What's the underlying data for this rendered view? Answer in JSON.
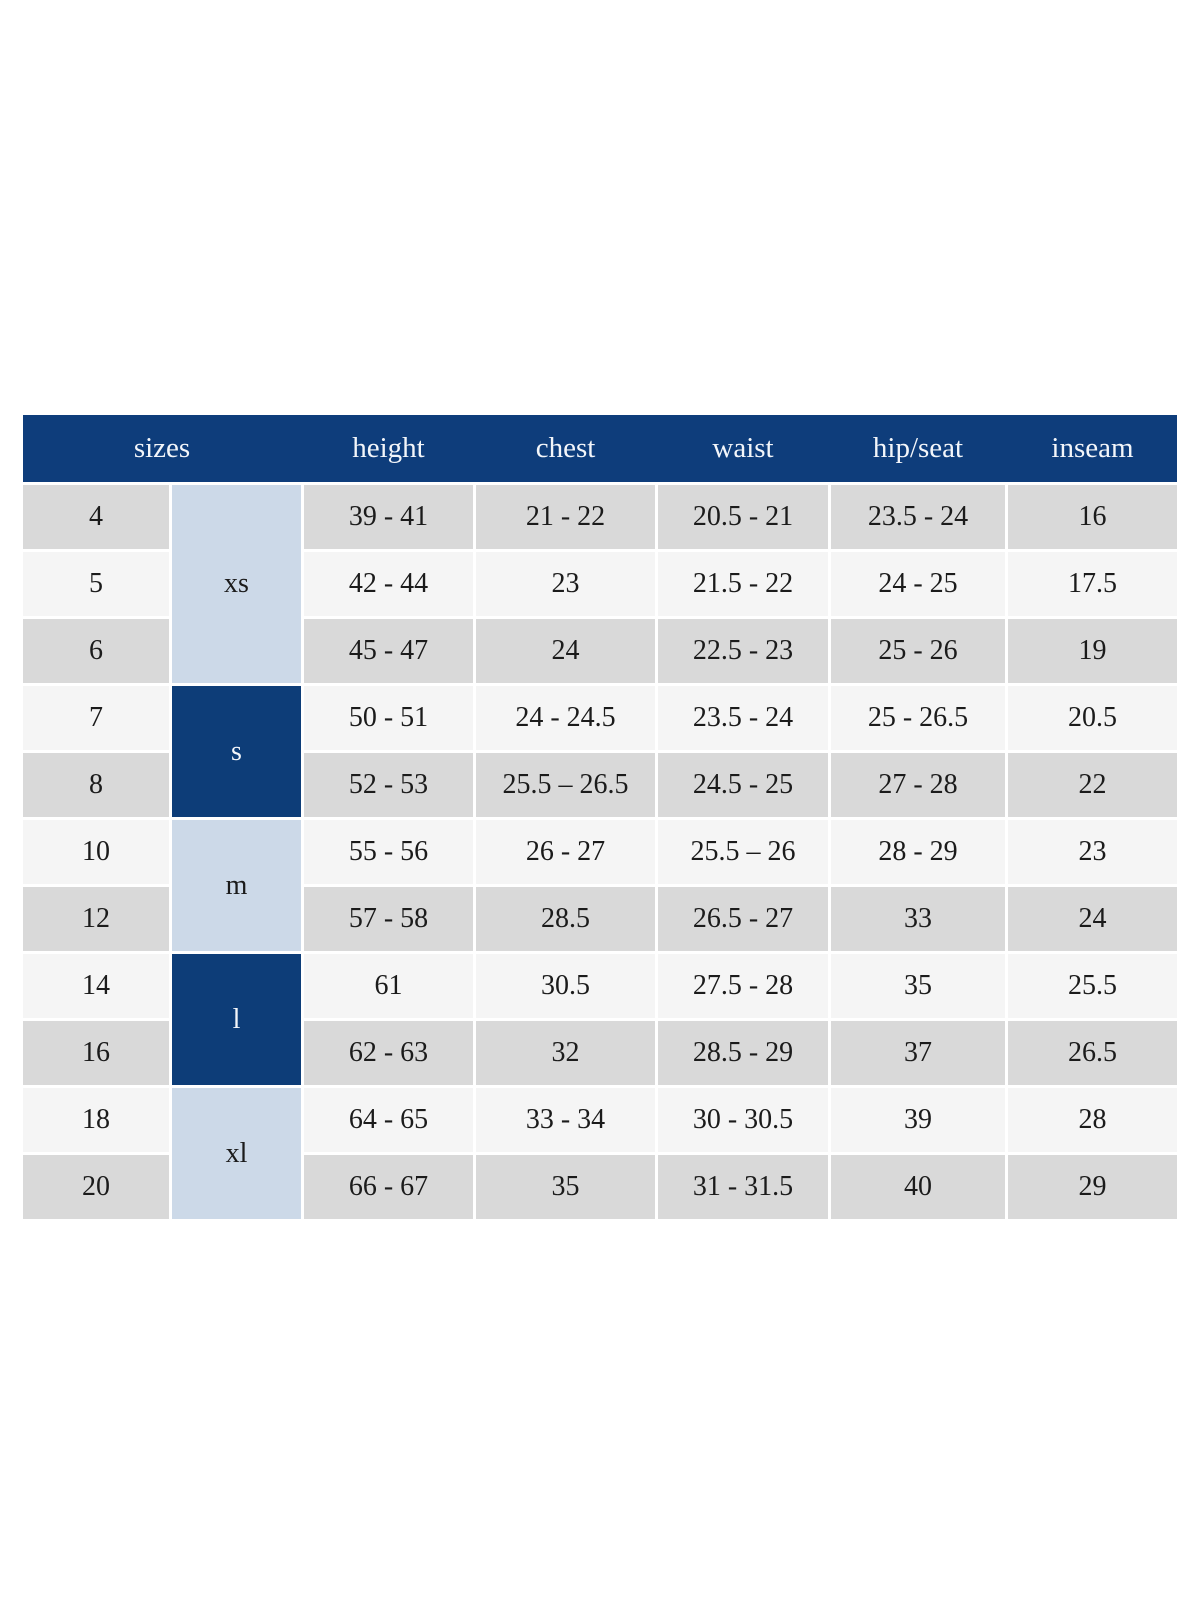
{
  "colors": {
    "header_blue": "#0e3d7b",
    "group_dark": "#0d3d78",
    "group_light": "#ccd9e8",
    "row_gray": "#d9d9d9",
    "row_light": "#f5f5f5",
    "header_text": "#f3f6fa",
    "text_dark": "#1b1b1b"
  },
  "chart_data": {
    "type": "table",
    "columns": [
      "sizes",
      "height",
      "chest",
      "waist",
      "hip/seat",
      "inseam"
    ],
    "size_groups": [
      {
        "label": "xs",
        "sizes": [
          "4",
          "5",
          "6"
        ],
        "shade": "light"
      },
      {
        "label": "s",
        "sizes": [
          "7",
          "8"
        ],
        "shade": "dark"
      },
      {
        "label": "m",
        "sizes": [
          "10",
          "12"
        ],
        "shade": "light"
      },
      {
        "label": "l",
        "sizes": [
          "14",
          "16"
        ],
        "shade": "dark"
      },
      {
        "label": "xl",
        "sizes": [
          "18",
          "20"
        ],
        "shade": "light"
      }
    ],
    "rows": [
      {
        "size": "4",
        "group": "xs",
        "height": "39 - 41",
        "chest": "21 - 22",
        "waist": "20.5 - 21",
        "hip_seat": "23.5 - 24",
        "inseam": "16"
      },
      {
        "size": "5",
        "group": "xs",
        "height": "42 - 44",
        "chest": "23",
        "waist": "21.5 - 22",
        "hip_seat": "24 - 25",
        "inseam": "17.5"
      },
      {
        "size": "6",
        "group": "xs",
        "height": "45 - 47",
        "chest": "24",
        "waist": "22.5 - 23",
        "hip_seat": "25 - 26",
        "inseam": "19"
      },
      {
        "size": "7",
        "group": "s",
        "height": "50 - 51",
        "chest": "24 - 24.5",
        "waist": "23.5 - 24",
        "hip_seat": "25 - 26.5",
        "inseam": "20.5"
      },
      {
        "size": "8",
        "group": "s",
        "height": "52 - 53",
        "chest": "25.5 – 26.5",
        "waist": "24.5 - 25",
        "hip_seat": "27 - 28",
        "inseam": "22"
      },
      {
        "size": "10",
        "group": "m",
        "height": "55 - 56",
        "chest": "26 - 27",
        "waist": "25.5 – 26",
        "hip_seat": "28 - 29",
        "inseam": "23"
      },
      {
        "size": "12",
        "group": "m",
        "height": "57 - 58",
        "chest": "28.5",
        "waist": "26.5 - 27",
        "hip_seat": "33",
        "inseam": "24"
      },
      {
        "size": "14",
        "group": "l",
        "height": "61",
        "chest": "30.5",
        "waist": "27.5 - 28",
        "hip_seat": "35",
        "inseam": "25.5"
      },
      {
        "size": "16",
        "group": "l",
        "height": "62 - 63",
        "chest": "32",
        "waist": "28.5 - 29",
        "hip_seat": "37",
        "inseam": "26.5"
      },
      {
        "size": "18",
        "group": "xl",
        "height": "64 - 65",
        "chest": "33 - 34",
        "waist": "30 - 30.5",
        "hip_seat": "39",
        "inseam": "28"
      },
      {
        "size": "20",
        "group": "xl",
        "height": "66 - 67",
        "chest": "35",
        "waist": "31 - 31.5",
        "hip_seat": "40",
        "inseam": "29"
      }
    ]
  }
}
